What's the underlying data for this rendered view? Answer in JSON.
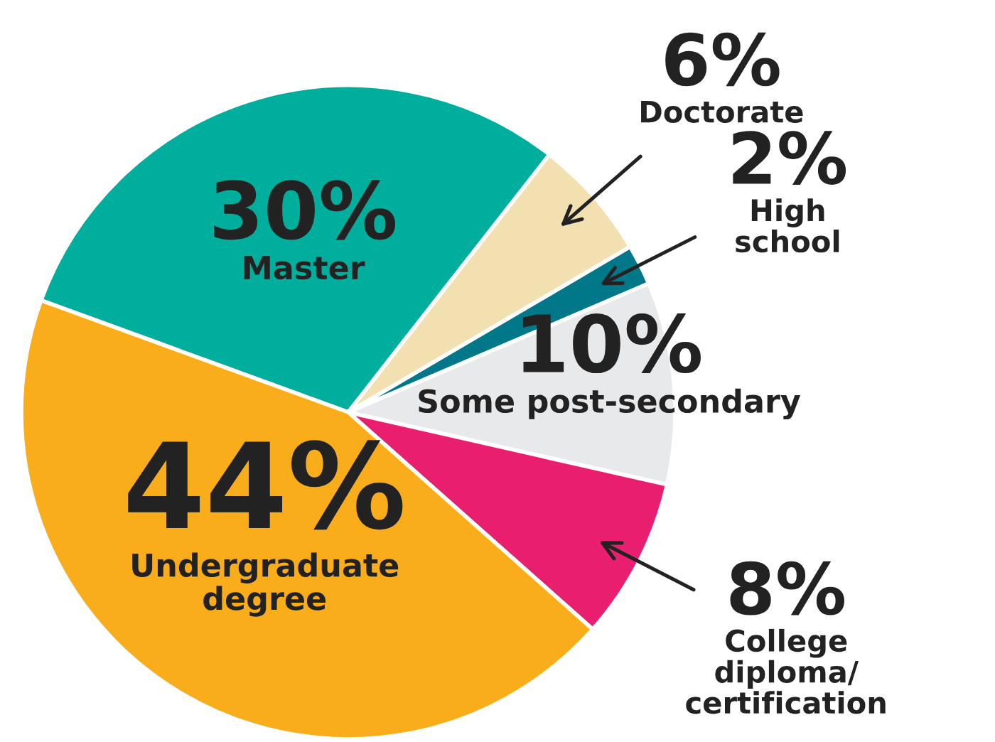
{
  "chart_data": {
    "type": "pie",
    "categories": [
      "Master",
      "Doctorate",
      "High\nschool",
      "Some post-secondary",
      "College\ndiploma/\ncertification",
      "Undergraduate\ndegree"
    ],
    "values": [
      30,
      6,
      2,
      10,
      8,
      44
    ],
    "colors": [
      "#00ae9e",
      "#f2e0b0",
      "#00788a",
      "#e8e9eb",
      "#e91e6e",
      "#f9ad1a"
    ],
    "value_labels": [
      "30%",
      "6%",
      "2%",
      "10%",
      "8%",
      "44%"
    ]
  }
}
